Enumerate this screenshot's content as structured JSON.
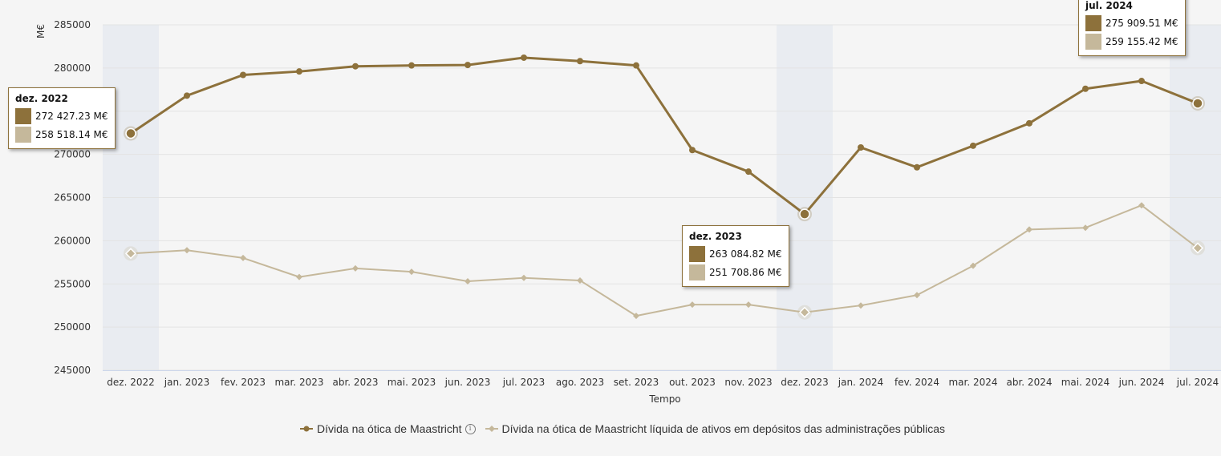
{
  "chart_data": {
    "type": "line",
    "ylabel": "M€",
    "xlabel": "Tempo",
    "ylim": [
      245000,
      285000
    ],
    "yticks": [
      245000,
      250000,
      255000,
      260000,
      265000,
      270000,
      275000,
      280000,
      285000
    ],
    "ytick_labels": [
      "245000",
      "250000",
      "255000",
      "260000",
      "265000",
      "270000",
      "275000",
      "280000",
      "285000"
    ],
    "categories": [
      "dez. 2022",
      "jan. 2023",
      "fev. 2023",
      "mar. 2023",
      "abr. 2023",
      "mai. 2023",
      "jun. 2023",
      "jul. 2023",
      "ago. 2023",
      "set. 2023",
      "out. 2023",
      "nov. 2023",
      "dez. 2023",
      "jan. 2024",
      "fev. 2024",
      "mar. 2024",
      "abr. 2024",
      "mai. 2024",
      "jun. 2024",
      "jul. 2024"
    ],
    "highlighted_categories": [
      "dez. 2022",
      "dez. 2023",
      "jul. 2024"
    ],
    "grid": true,
    "legend_position": "bottom",
    "series": [
      {
        "name": "Dívida na ótica de Maastricht",
        "color": "#8d713b",
        "marker": "circle",
        "values": [
          272427.23,
          276800,
          279200,
          279600,
          280200,
          280300,
          280350,
          281200,
          280800,
          280300,
          270500,
          268000,
          263084.82,
          270800,
          268500,
          271000,
          273600,
          277600,
          278500,
          275909.51
        ]
      },
      {
        "name": "Dívida na ótica de Maastricht líquida de ativos em depósitos das administrações públicas",
        "color": "#c5b89b",
        "marker": "diamond",
        "values": [
          258518.14,
          258900,
          258000,
          255800,
          256800,
          256400,
          255300,
          255700,
          255400,
          251300,
          252600,
          252600,
          251708.86,
          252500,
          253700,
          257100,
          261300,
          261500,
          264100,
          259155.42
        ]
      }
    ],
    "tooltips": [
      {
        "title": "dez. 2022",
        "v1": "272 427.23 M€",
        "v2": "258 518.14 M€"
      },
      {
        "title": "dez. 2023",
        "v1": "263 084.82 M€",
        "v2": "251 708.86 M€"
      },
      {
        "title": "jul. 2024",
        "v1": "275 909.51 M€",
        "v2": "259 155.42 M€"
      }
    ]
  },
  "legend": {
    "item1": "Dívida na ótica de Maastricht",
    "info_icon": "ⓘ",
    "item2": "Dívida na ótica de Maastricht líquida de ativos em depósitos das administrações públicas"
  }
}
